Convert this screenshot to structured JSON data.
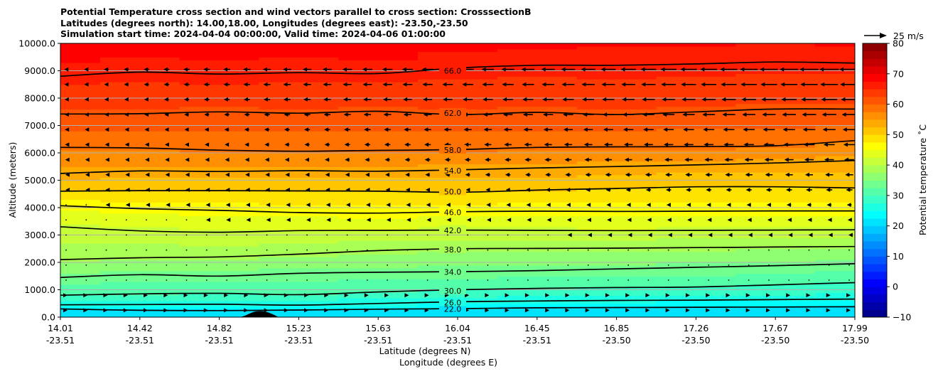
{
  "chart_data": {
    "type": "contour",
    "title_lines": [
      "Potential Temperature cross section and wind vectors parallel to cross section: CrosssectionB",
      "Latitudes (degrees north): 14.00,18.00, Longitudes (degrees east): -23.50,-23.50",
      "Simulation start time: 2024-04-04 00:00:00, Valid time: 2024-04-06 01:00:00"
    ],
    "xlabel_lat": "Latitude (degrees N)",
    "xlabel_lon": "Longitude (degrees E)",
    "ylabel": "Altitude (meters)",
    "colorbar_label": "Potential temperature ˚C",
    "colorbar_range": [
      -10,
      80
    ],
    "colorbar_ticks": [
      "−10",
      "0",
      "10",
      "20",
      "30",
      "40",
      "50",
      "60",
      "70",
      "80"
    ],
    "ylim": [
      0,
      10000
    ],
    "y_ticks": [
      "0.0",
      "1000.0",
      "2000.0",
      "3000.0",
      "4000.0",
      "5000.0",
      "6000.0",
      "7000.0",
      "8000.0",
      "9000.0",
      "10000.0"
    ],
    "x_ticks": [
      {
        "lat": "14.01",
        "lon": "-23.51"
      },
      {
        "lat": "14.42",
        "lon": "-23.51"
      },
      {
        "lat": "14.82",
        "lon": "-23.51"
      },
      {
        "lat": "15.23",
        "lon": "-23.51"
      },
      {
        "lat": "15.63",
        "lon": "-23.51"
      },
      {
        "lat": "16.04",
        "lon": "-23.51"
      },
      {
        "lat": "16.45",
        "lon": "-23.51"
      },
      {
        "lat": "16.85",
        "lon": "-23.50"
      },
      {
        "lat": "17.26",
        "lon": "-23.50"
      },
      {
        "lat": "17.67",
        "lon": "-23.50"
      },
      {
        "lat": "17.99",
        "lon": "-23.50"
      }
    ],
    "contours": [
      {
        "level": 22,
        "label": "22.0",
        "altitudes": [
          300,
          250,
          240,
          260,
          290,
          310,
          340,
          350,
          360,
          370,
          380
        ]
      },
      {
        "level": 26,
        "label": "26.0",
        "altitudes": [
          450,
          460,
          470,
          440,
          500,
          560,
          590,
          610,
          620,
          640,
          660
        ]
      },
      {
        "level": 30,
        "label": "30.0",
        "altitudes": [
          800,
          850,
          870,
          820,
          920,
          1000,
          1050,
          1080,
          1100,
          1180,
          1260
        ]
      },
      {
        "level": 34,
        "label": "34.0",
        "altitudes": [
          1450,
          1550,
          1500,
          1600,
          1640,
          1660,
          1700,
          1760,
          1820,
          1880,
          1950
        ]
      },
      {
        "level": 38,
        "label": "38.0",
        "altitudes": [
          2100,
          2170,
          2200,
          2300,
          2430,
          2500,
          2510,
          2520,
          2540,
          2560,
          2580
        ]
      },
      {
        "level": 42,
        "label": "42.0",
        "altitudes": [
          3300,
          3150,
          3100,
          3160,
          3170,
          3180,
          3170,
          3160,
          3170,
          3180,
          3190
        ]
      },
      {
        "level": 46,
        "label": "46.0",
        "altitudes": [
          4070,
          3960,
          3900,
          3820,
          3800,
          3850,
          3870,
          3860,
          3870,
          3880,
          3880
        ]
      },
      {
        "level": 50,
        "label": "50.0",
        "altitudes": [
          4600,
          4620,
          4620,
          4610,
          4600,
          4560,
          4640,
          4700,
          4760,
          4760,
          4720
        ]
      },
      {
        "level": 54,
        "label": "54.0",
        "altitudes": [
          5250,
          5340,
          5320,
          5350,
          5330,
          5380,
          5450,
          5500,
          5560,
          5630,
          5720
        ]
      },
      {
        "level": 58,
        "label": "58.0",
        "altitudes": [
          6200,
          6180,
          6100,
          6060,
          6090,
          6120,
          6200,
          6220,
          6230,
          6260,
          6450
        ]
      },
      {
        "level": 62,
        "label": "62.0",
        "altitudes": [
          7420,
          7430,
          7500,
          7450,
          7520,
          7400,
          7480,
          7400,
          7500,
          7600,
          7600
        ]
      },
      {
        "level": 66,
        "label": "66.0",
        "altitudes": [
          8800,
          8950,
          8880,
          8930,
          8900,
          9100,
          9200,
          9200,
          9250,
          9320,
          9280
        ]
      }
    ],
    "wind_reference": "25 m/s"
  }
}
